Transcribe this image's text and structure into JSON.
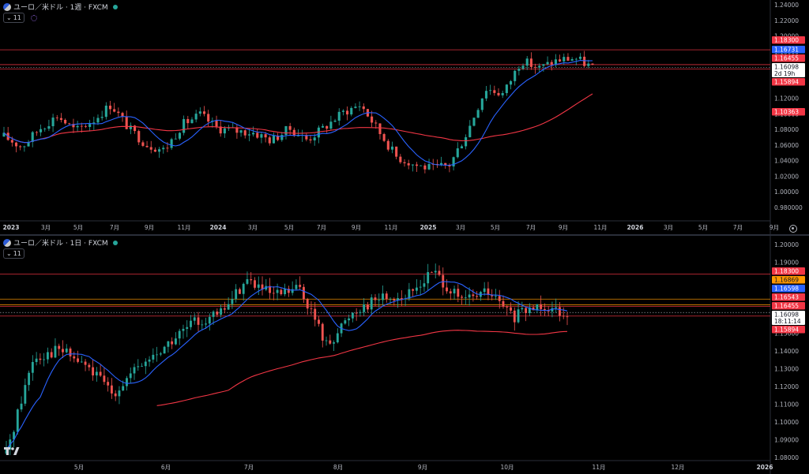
{
  "top": {
    "symbol_title": "ユーロ／米ドル · 1週 · FXCM",
    "indicator_count": "11",
    "icons": {
      "flags": "eur-usd-flag-icon",
      "live": "market-open-dot-icon",
      "indicator": "indicator-settings-icon",
      "chevron": "chevron-down-icon",
      "settings": "gear-icon"
    },
    "price_ticks": [
      "1.24000",
      "1.22000",
      "1.20000",
      "1.18000",
      "1.16000",
      "1.14000",
      "1.12000",
      "1.10000",
      "1.08000",
      "1.06000",
      "1.04000",
      "1.02000",
      "1.00000",
      "0.980000"
    ],
    "time_ticks": [
      {
        "label": "2023",
        "bold": true
      },
      {
        "label": "3月"
      },
      {
        "label": "5月"
      },
      {
        "label": "7月"
      },
      {
        "label": "9月"
      },
      {
        "label": "11月"
      },
      {
        "label": "2024",
        "bold": true
      },
      {
        "label": "3月"
      },
      {
        "label": "5月"
      },
      {
        "label": "7月"
      },
      {
        "label": "9月"
      },
      {
        "label": "11月"
      },
      {
        "label": "2025",
        "bold": true
      },
      {
        "label": "3月"
      },
      {
        "label": "5月"
      },
      {
        "label": "7月"
      },
      {
        "label": "9月"
      },
      {
        "label": "11月"
      },
      {
        "label": "2026",
        "bold": true
      },
      {
        "label": "3月"
      },
      {
        "label": "5月"
      },
      {
        "label": "7月"
      },
      {
        "label": "9月"
      }
    ],
    "price_tags": [
      {
        "value": "1.18300",
        "bg": "#f23645",
        "fg": "#ffffff"
      },
      {
        "value": "1.16731",
        "bg": "#2962ff",
        "fg": "#ffffff"
      },
      {
        "value": "1.16455",
        "bg": "#f23645",
        "fg": "#ffffff"
      },
      {
        "value": "1.16098",
        "sub": "2d 19h",
        "bg": "#ffffff",
        "fg": "#131722"
      },
      {
        "value": "1.15894",
        "bg": "#f23645",
        "fg": "#ffffff"
      },
      {
        "value": "1.10363",
        "bg": "#f23645",
        "fg": "#ffffff"
      }
    ],
    "horizontal_levels": [
      1.183,
      1.16455,
      1.15894
    ],
    "current_price": 1.16098
  },
  "bottom": {
    "symbol_title": "ユーロ／米ドル · 1日 · FXCM",
    "indicator_count": "11",
    "price_ticks": [
      "1.20000",
      "1.19000",
      "1.18000",
      "1.17000",
      "1.16000",
      "1.15000",
      "1.14000",
      "1.13000",
      "1.12000",
      "1.11000",
      "1.10000",
      "1.09000",
      "1.08000"
    ],
    "time_ticks": [
      {
        "label": "5月"
      },
      {
        "label": "6月"
      },
      {
        "label": "7月"
      },
      {
        "label": "8月"
      },
      {
        "label": "9月"
      },
      {
        "label": "10月"
      },
      {
        "label": "11月"
      },
      {
        "label": "12月"
      },
      {
        "label": "2026",
        "bold": true
      }
    ],
    "price_tags": [
      {
        "value": "1.18300",
        "bg": "#f23645",
        "fg": "#ffffff"
      },
      {
        "value": "1.16869",
        "bg": "#ff9800",
        "fg": "#131722"
      },
      {
        "value": "1.16598",
        "bg": "#2962ff",
        "fg": "#ffffff"
      },
      {
        "value": "1.16543",
        "bg": "#f23645",
        "fg": "#ffffff"
      },
      {
        "value": "1.16455",
        "bg": "#f23645",
        "fg": "#ffffff"
      },
      {
        "value": "1.16098",
        "sub": "18:11:14",
        "bg": "#ffffff",
        "fg": "#131722"
      },
      {
        "value": "1.15894",
        "bg": "#f23645",
        "fg": "#ffffff"
      }
    ],
    "horizontal_levels": [
      {
        "value": 1.183,
        "color": "#f23645"
      },
      {
        "value": 1.16869,
        "color": "#ff9800"
      },
      {
        "value": 1.16543,
        "color": "#ff9800"
      },
      {
        "value": 1.16455,
        "color": "#f23645"
      },
      {
        "value": 1.15894,
        "color": "#f23645"
      }
    ],
    "current_price": 1.16098
  },
  "chart_data": [
    {
      "type": "candlestick",
      "timeframe": "weekly",
      "ylim": [
        0.97,
        1.245
      ],
      "colors": {
        "up": "#26a69a",
        "down": "#ef5350",
        "ma_fast": "#2962ff",
        "ma_slow": "#f23645"
      },
      "approx_close_path": [
        {
          "date": "2023-01",
          "close": 1.075
        },
        {
          "date": "2023-02",
          "close": 1.062
        },
        {
          "date": "2023-03",
          "close": 1.085
        },
        {
          "date": "2023-04",
          "close": 1.101
        },
        {
          "date": "2023-05",
          "close": 1.082
        },
        {
          "date": "2023-06",
          "close": 1.095
        },
        {
          "date": "2023-07",
          "close": 1.115
        },
        {
          "date": "2023-08",
          "close": 1.085
        },
        {
          "date": "2023-09",
          "close": 1.065
        },
        {
          "date": "2023-10",
          "close": 1.058
        },
        {
          "date": "2023-11",
          "close": 1.09
        },
        {
          "date": "2023-12",
          "close": 1.102
        },
        {
          "date": "2024-01",
          "close": 1.085
        },
        {
          "date": "2024-02",
          "close": 1.082
        },
        {
          "date": "2024-03",
          "close": 1.08
        },
        {
          "date": "2024-04",
          "close": 1.07
        },
        {
          "date": "2024-05",
          "close": 1.085
        },
        {
          "date": "2024-06",
          "close": 1.071
        },
        {
          "date": "2024-07",
          "close": 1.087
        },
        {
          "date": "2024-08",
          "close": 1.105
        },
        {
          "date": "2024-09",
          "close": 1.115
        },
        {
          "date": "2024-10",
          "close": 1.082
        },
        {
          "date": "2024-11",
          "close": 1.05
        },
        {
          "date": "2024-12",
          "close": 1.04
        },
        {
          "date": "2025-01",
          "close": 1.035
        },
        {
          "date": "2025-02",
          "close": 1.04
        },
        {
          "date": "2025-03",
          "close": 1.082
        },
        {
          "date": "2025-04",
          "close": 1.135
        },
        {
          "date": "2025-05",
          "close": 1.128
        },
        {
          "date": "2025-06",
          "close": 1.17
        },
        {
          "date": "2025-07",
          "close": 1.16
        },
        {
          "date": "2025-08",
          "close": 1.17
        },
        {
          "date": "2025-09",
          "close": 1.173
        },
        {
          "date": "2025-10",
          "close": 1.161
        }
      ]
    },
    {
      "type": "candlestick",
      "timeframe": "daily",
      "ylim": [
        1.076,
        1.205
      ],
      "colors": {
        "up": "#26a69a",
        "down": "#ef5350",
        "ma_fast": "#2962ff",
        "ma_slow": "#f23645"
      },
      "approx_close_path": [
        {
          "date": "2025-04-01",
          "close": 1.08
        },
        {
          "date": "2025-04-11",
          "close": 1.135
        },
        {
          "date": "2025-04-21",
          "close": 1.14
        },
        {
          "date": "2025-05-01",
          "close": 1.13
        },
        {
          "date": "2025-05-12",
          "close": 1.115
        },
        {
          "date": "2025-05-21",
          "close": 1.13
        },
        {
          "date": "2025-06-02",
          "close": 1.142
        },
        {
          "date": "2025-06-12",
          "close": 1.155
        },
        {
          "date": "2025-06-23",
          "close": 1.16
        },
        {
          "date": "2025-07-01",
          "close": 1.18
        },
        {
          "date": "2025-07-10",
          "close": 1.17
        },
        {
          "date": "2025-07-23",
          "close": 1.175
        },
        {
          "date": "2025-08-01",
          "close": 1.142
        },
        {
          "date": "2025-08-11",
          "close": 1.162
        },
        {
          "date": "2025-08-22",
          "close": 1.17
        },
        {
          "date": "2025-09-01",
          "close": 1.17
        },
        {
          "date": "2025-09-17",
          "close": 1.185
        },
        {
          "date": "2025-09-25",
          "close": 1.167
        },
        {
          "date": "2025-10-01",
          "close": 1.173
        },
        {
          "date": "2025-10-09",
          "close": 1.158
        },
        {
          "date": "2025-10-17",
          "close": 1.166
        },
        {
          "date": "2025-10-24",
          "close": 1.161
        }
      ]
    }
  ]
}
